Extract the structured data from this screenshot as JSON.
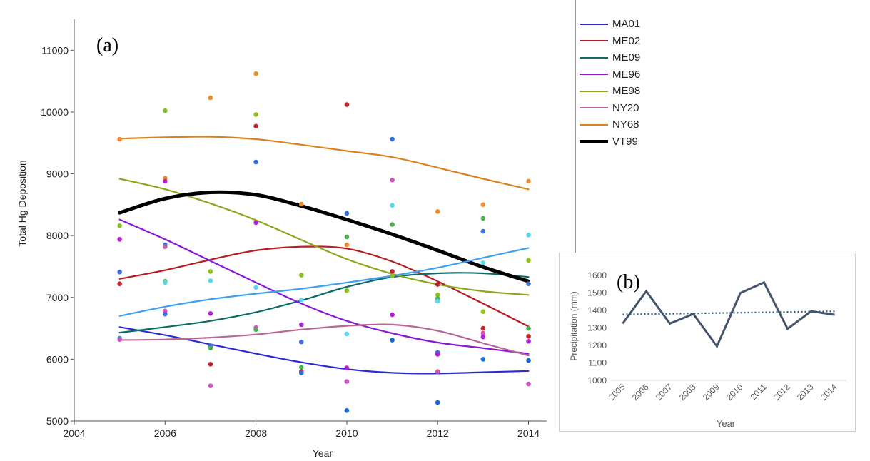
{
  "panels": {
    "a_label": "(a)",
    "b_label": "(b)"
  },
  "colors": {
    "MA01": "#2b2bd6",
    "ME02": "#b81c25",
    "ME09": "#0f6b68",
    "ME96": "#8a16d6",
    "ME98": "#8ea61e",
    "NY20": "#b86792",
    "NY68": "#d9821e",
    "VT99": "#000000",
    "trend": "#3fa0f0"
  },
  "chart_data": [
    {
      "type": "scatter",
      "title": "",
      "xlabel": "Year",
      "ylabel": "Total Hg Deposition",
      "xlim": [
        2004,
        2014.4
      ],
      "ylim": [
        5000,
        11500
      ],
      "x_ticks": [
        2004,
        2006,
        2008,
        2010,
        2012,
        2014
      ],
      "y_ticks": [
        5000,
        6000,
        7000,
        8000,
        9000,
        10000,
        11000
      ],
      "grid": false,
      "legend_position": "right",
      "series": [
        {
          "name": "MA01",
          "type": "smooth-line",
          "x": [
            2005,
            2006,
            2007,
            2008,
            2009,
            2010,
            2011,
            2012,
            2013,
            2014
          ],
          "y": [
            6520,
            6390,
            6240,
            6090,
            5950,
            5840,
            5780,
            5770,
            5790,
            5810
          ]
        },
        {
          "name": "ME02",
          "type": "smooth-line",
          "x": [
            2005,
            2006,
            2007,
            2008,
            2009,
            2010,
            2011,
            2012,
            2013,
            2014
          ],
          "y": [
            7300,
            7440,
            7610,
            7760,
            7820,
            7790,
            7580,
            7260,
            6900,
            6530
          ]
        },
        {
          "name": "ME09",
          "type": "smooth-line",
          "x": [
            2005,
            2006,
            2007,
            2008,
            2009,
            2010,
            2011,
            2012,
            2013,
            2014
          ],
          "y": [
            6430,
            6520,
            6620,
            6760,
            6950,
            7170,
            7330,
            7390,
            7390,
            7330
          ]
        },
        {
          "name": "ME96",
          "type": "smooth-line",
          "x": [
            2005,
            2006,
            2007,
            2008,
            2009,
            2010,
            2011,
            2012,
            2013,
            2014
          ],
          "y": [
            8260,
            7940,
            7590,
            7240,
            6900,
            6620,
            6420,
            6270,
            6180,
            6090
          ]
        },
        {
          "name": "ME98",
          "type": "smooth-line",
          "x": [
            2005,
            2006,
            2007,
            2008,
            2009,
            2010,
            2011,
            2012,
            2013,
            2014
          ],
          "y": [
            8920,
            8750,
            8520,
            8250,
            7930,
            7620,
            7380,
            7210,
            7100,
            7040
          ]
        },
        {
          "name": "NY20",
          "type": "smooth-line",
          "x": [
            2005,
            2006,
            2007,
            2008,
            2009,
            2010,
            2011,
            2012,
            2013,
            2014
          ],
          "y": [
            6310,
            6320,
            6350,
            6400,
            6480,
            6540,
            6560,
            6460,
            6260,
            6060
          ]
        },
        {
          "name": "NY68",
          "type": "smooth-line",
          "x": [
            2005,
            2006,
            2007,
            2008,
            2009,
            2010,
            2011,
            2012,
            2013,
            2014
          ],
          "y": [
            9570,
            9590,
            9600,
            9560,
            9470,
            9370,
            9270,
            9100,
            8920,
            8750
          ]
        },
        {
          "name": "VT99",
          "type": "smooth-line",
          "width": 5,
          "x": [
            2005,
            2006,
            2007,
            2008,
            2009,
            2010,
            2011,
            2012,
            2013,
            2014
          ],
          "y": [
            8370,
            8600,
            8700,
            8660,
            8480,
            8260,
            8020,
            7760,
            7490,
            7260
          ]
        },
        {
          "name": "",
          "type": "smooth-line",
          "colorKey": "trend",
          "x": [
            2005,
            2006,
            2007,
            2008,
            2009,
            2010,
            2011,
            2012,
            2013,
            2014
          ],
          "y": [
            6700,
            6850,
            6970,
            7060,
            7140,
            7240,
            7350,
            7480,
            7640,
            7800
          ]
        }
      ],
      "points": [
        {
          "x": 2005,
          "y": 9560,
          "c": "#f08a2e"
        },
        {
          "x": 2005,
          "y": 8160,
          "c": "#8ec21e"
        },
        {
          "x": 2005,
          "y": 7940,
          "c": "#b41fd6"
        },
        {
          "x": 2005,
          "y": 7410,
          "c": "#3b6fe0"
        },
        {
          "x": 2005,
          "y": 7220,
          "c": "#c8202a"
        },
        {
          "x": 2005,
          "y": 6340,
          "c": "#2e9fe8"
        },
        {
          "x": 2005,
          "y": 6320,
          "c": "#d050c0"
        },
        {
          "x": 2006,
          "y": 10020,
          "c": "#7ac21e"
        },
        {
          "x": 2006,
          "y": 8930,
          "c": "#f08a2e"
        },
        {
          "x": 2006,
          "y": 8880,
          "c": "#b41fd6"
        },
        {
          "x": 2006,
          "y": 7850,
          "c": "#3b6fe0"
        },
        {
          "x": 2006,
          "y": 7820,
          "c": "#b86792"
        },
        {
          "x": 2006,
          "y": 7260,
          "c": "#4caf50"
        },
        {
          "x": 2006,
          "y": 7240,
          "c": "#5ad8f0"
        },
        {
          "x": 2006,
          "y": 6780,
          "c": "#d050c0"
        },
        {
          "x": 2006,
          "y": 6730,
          "c": "#3b6fe0"
        },
        {
          "x": 2007,
          "y": 10230,
          "c": "#f08a2e"
        },
        {
          "x": 2007,
          "y": 7420,
          "c": "#8ec21e"
        },
        {
          "x": 2007,
          "y": 7270,
          "c": "#5ad8f0"
        },
        {
          "x": 2007,
          "y": 6740,
          "c": "#b41fd6"
        },
        {
          "x": 2007,
          "y": 6220,
          "c": "#3b6fe0"
        },
        {
          "x": 2007,
          "y": 6180,
          "c": "#4caf50"
        },
        {
          "x": 2007,
          "y": 5920,
          "c": "#c8202a"
        },
        {
          "x": 2007,
          "y": 5570,
          "c": "#d050c0"
        },
        {
          "x": 2008,
          "y": 10620,
          "c": "#f08a2e"
        },
        {
          "x": 2008,
          "y": 9960,
          "c": "#8ec21e"
        },
        {
          "x": 2008,
          "y": 9770,
          "c": "#c8202a"
        },
        {
          "x": 2008,
          "y": 9190,
          "c": "#3b6fe0"
        },
        {
          "x": 2008,
          "y": 8210,
          "c": "#b41fd6"
        },
        {
          "x": 2008,
          "y": 7160,
          "c": "#5ad8f0"
        },
        {
          "x": 2008,
          "y": 6510,
          "c": "#d050c0"
        },
        {
          "x": 2008,
          "y": 6480,
          "c": "#4caf50"
        },
        {
          "x": 2009,
          "y": 8510,
          "c": "#f08a2e"
        },
        {
          "x": 2009,
          "y": 7360,
          "c": "#8ec21e"
        },
        {
          "x": 2009,
          "y": 6960,
          "c": "#5ad8f0"
        },
        {
          "x": 2009,
          "y": 6560,
          "c": "#b41fd6"
        },
        {
          "x": 2009,
          "y": 6280,
          "c": "#3b6fe0"
        },
        {
          "x": 2009,
          "y": 5870,
          "c": "#4caf50"
        },
        {
          "x": 2009,
          "y": 5800,
          "c": "#c8202a"
        },
        {
          "x": 2009,
          "y": 5780,
          "c": "#3b6fe0"
        },
        {
          "x": 2010,
          "y": 10120,
          "c": "#c8202a"
        },
        {
          "x": 2010,
          "y": 8360,
          "c": "#3b6fe0"
        },
        {
          "x": 2010,
          "y": 7980,
          "c": "#4caf50"
        },
        {
          "x": 2010,
          "y": 7850,
          "c": "#f08a2e"
        },
        {
          "x": 2010,
          "y": 7110,
          "c": "#8ec21e"
        },
        {
          "x": 2010,
          "y": 6410,
          "c": "#5ad8f0"
        },
        {
          "x": 2010,
          "y": 5860,
          "c": "#b41fd6"
        },
        {
          "x": 2010,
          "y": 5640,
          "c": "#d050c0"
        },
        {
          "x": 2010,
          "y": 5170,
          "c": "#1a6ad6"
        },
        {
          "x": 2011,
          "y": 9560,
          "c": "#3b6fe0"
        },
        {
          "x": 2011,
          "y": 8900,
          "c": "#d050c0"
        },
        {
          "x": 2011,
          "y": 8490,
          "c": "#5ad8f0"
        },
        {
          "x": 2011,
          "y": 8180,
          "c": "#4caf50"
        },
        {
          "x": 2011,
          "y": 7420,
          "c": "#c8202a"
        },
        {
          "x": 2011,
          "y": 7350,
          "c": "#8ec21e"
        },
        {
          "x": 2011,
          "y": 6720,
          "c": "#b41fd6"
        },
        {
          "x": 2011,
          "y": 6310,
          "c": "#1a6ad6"
        },
        {
          "x": 2012,
          "y": 8390,
          "c": "#f08a2e"
        },
        {
          "x": 2012,
          "y": 7210,
          "c": "#c8202a"
        },
        {
          "x": 2012,
          "y": 7040,
          "c": "#8ec21e"
        },
        {
          "x": 2012,
          "y": 6980,
          "c": "#4caf50"
        },
        {
          "x": 2012,
          "y": 6940,
          "c": "#5ad8f0"
        },
        {
          "x": 2012,
          "y": 6110,
          "c": "#3b6fe0"
        },
        {
          "x": 2012,
          "y": 6080,
          "c": "#b41fd6"
        },
        {
          "x": 2012,
          "y": 5800,
          "c": "#d050c0"
        },
        {
          "x": 2012,
          "y": 5300,
          "c": "#1a6ad6"
        },
        {
          "x": 2013,
          "y": 8500,
          "c": "#f08a2e"
        },
        {
          "x": 2013,
          "y": 8280,
          "c": "#4caf50"
        },
        {
          "x": 2013,
          "y": 8070,
          "c": "#3b6fe0"
        },
        {
          "x": 2013,
          "y": 7560,
          "c": "#5ad8f0"
        },
        {
          "x": 2013,
          "y": 6770,
          "c": "#8ec21e"
        },
        {
          "x": 2013,
          "y": 6500,
          "c": "#c8202a"
        },
        {
          "x": 2013,
          "y": 6420,
          "c": "#d050c0"
        },
        {
          "x": 2013,
          "y": 6360,
          "c": "#b41fd6"
        },
        {
          "x": 2013,
          "y": 6000,
          "c": "#1a6ad6"
        },
        {
          "x": 2014,
          "y": 8880,
          "c": "#f08a2e"
        },
        {
          "x": 2014,
          "y": 8010,
          "c": "#5ad8f0"
        },
        {
          "x": 2014,
          "y": 7600,
          "c": "#8ec21e"
        },
        {
          "x": 2014,
          "y": 7220,
          "c": "#3b6fe0"
        },
        {
          "x": 2014,
          "y": 6500,
          "c": "#4caf50"
        },
        {
          "x": 2014,
          "y": 6370,
          "c": "#c8202a"
        },
        {
          "x": 2014,
          "y": 6290,
          "c": "#b41fd6"
        },
        {
          "x": 2014,
          "y": 5980,
          "c": "#1a6ad6"
        },
        {
          "x": 2014,
          "y": 5600,
          "c": "#d050c0"
        }
      ]
    },
    {
      "type": "line",
      "title": "",
      "xlabel": "Year",
      "ylabel": "Precipitation (mm)",
      "categories": [
        "2005",
        "2006",
        "2007",
        "2008",
        "2009",
        "2010",
        "2011",
        "2012",
        "2013",
        "2014"
      ],
      "ylim": [
        1000,
        1600
      ],
      "y_ticks": [
        1000,
        1100,
        1200,
        1300,
        1400,
        1500,
        1600
      ],
      "grid": false,
      "series": [
        {
          "name": "",
          "values": [
            1325,
            1510,
            1325,
            1380,
            1195,
            1500,
            1560,
            1295,
            1395,
            1375
          ],
          "color": "#44546a"
        },
        {
          "name": "",
          "style": "dotted-trend",
          "values": [
            1377,
            1379,
            1381,
            1383,
            1385,
            1387,
            1389,
            1391,
            1393,
            1395
          ],
          "color": "#2e5a7a"
        }
      ]
    }
  ]
}
